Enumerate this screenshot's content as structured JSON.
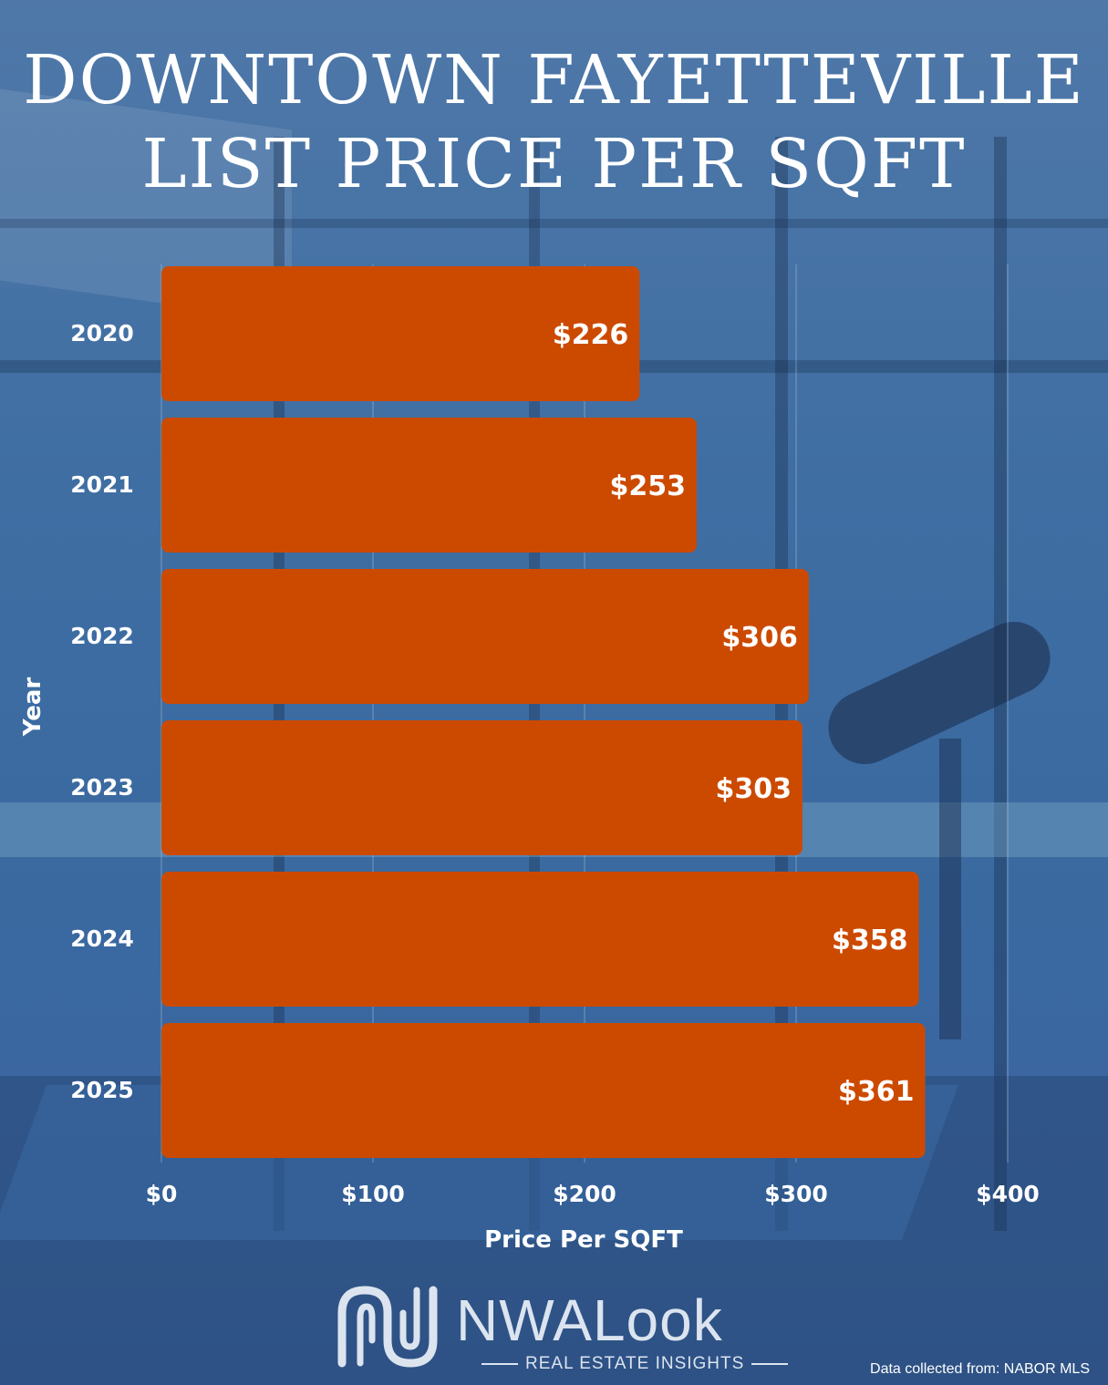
{
  "title_lines": [
    "DOWNTOWN FAYETTEVILLE",
    "LIST PRICE PER SQFT"
  ],
  "source_note": "Data collected from: NABOR MLS",
  "logo": {
    "name": "NWALook",
    "tagline": "REAL ESTATE INSIGHTS"
  },
  "colors": {
    "bar": "#cc4a00",
    "text": "#ffffff",
    "grid": "#a9bfd8"
  },
  "chart_data": {
    "type": "bar",
    "orientation": "horizontal",
    "categories": [
      "2020",
      "2021",
      "2022",
      "2023",
      "2024",
      "2025"
    ],
    "values": [
      226,
      253,
      306,
      303,
      358,
      361
    ],
    "value_labels": [
      "$226",
      "$253",
      "$306",
      "$303",
      "$358",
      "$361"
    ],
    "xlabel": "Price Per SQFT",
    "ylabel": "Year",
    "xlim": [
      0,
      400
    ],
    "xticks": [
      0,
      100,
      200,
      300,
      400
    ],
    "xtick_labels": [
      "$0",
      "$100",
      "$200",
      "$300",
      "$400"
    ],
    "grid": "vertical"
  }
}
